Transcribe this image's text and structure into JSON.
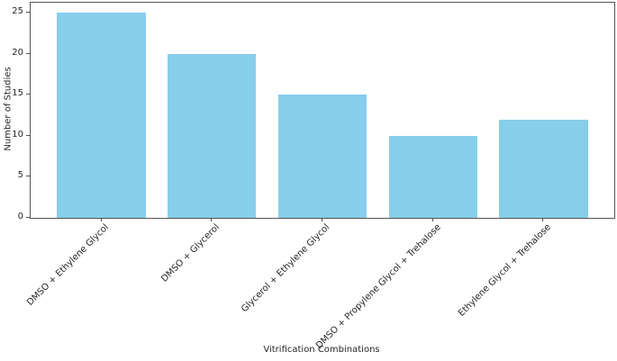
{
  "chart_data": {
    "type": "bar",
    "categories": [
      "DMSO + Ethylene Glycol",
      "DMSO + Glycerol",
      "Glycerol + Ethylene Glycol",
      "DMSO + Propylene Glycol + Trehalose",
      "Ethylene Glycol + Trehalose"
    ],
    "values": [
      25,
      20,
      15,
      10,
      12
    ],
    "title": "",
    "xlabel": "Vitrification Combinations",
    "ylabel": "Number of Studies",
    "yticks": [
      0,
      5,
      10,
      15,
      20,
      25
    ],
    "ylim": [
      0,
      26.25
    ],
    "bar_color": "#87CEEB",
    "bar_width_ratio": 0.8,
    "axis_color": "#555555",
    "text_color": "#262626",
    "background": "#ffffff",
    "grid": false,
    "legend_position": "none"
  }
}
